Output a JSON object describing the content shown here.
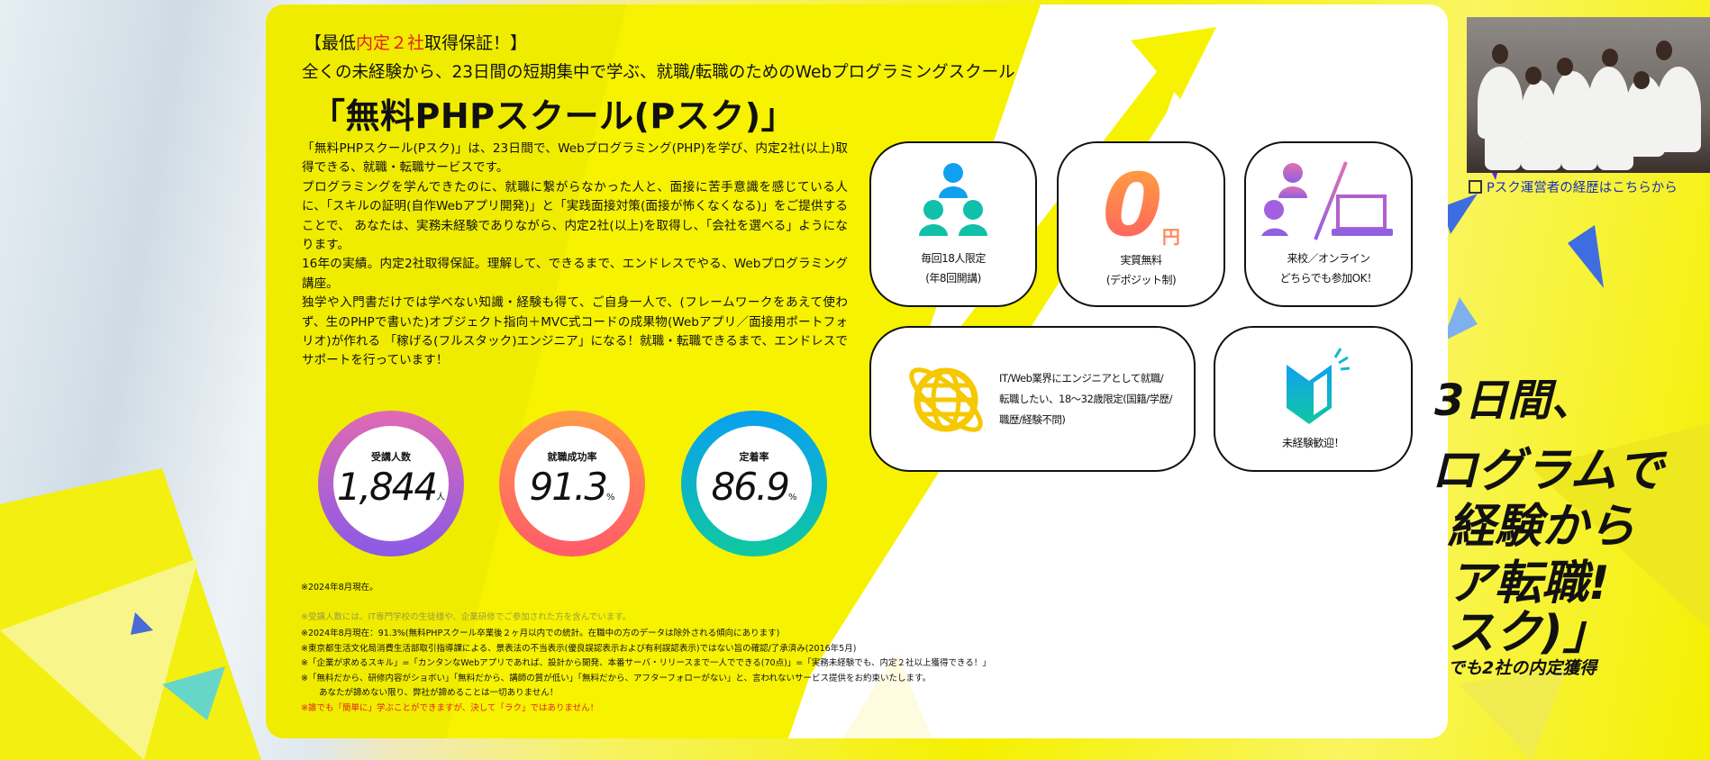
{
  "header": {
    "badge_prefix": "【最低",
    "badge_red": "内定２社",
    "badge_suffix": "取得保証！】",
    "subtitle": "全くの未経験から、23日間の短期集中で学ぶ、就職/転職のためのWebプログラミングスクール",
    "title": "「無料PHPスクール(Pスク)」"
  },
  "paragraphs": [
    "「無料PHPスクール(Pスク)」は、23日間で、Webプログラミング(PHP)を学び、内定2社(以上)取得できる、就職・転職サービスです。",
    "プログラミングを学んできたのに、就職に繋がらなかった人と、面接に苦手意識を感じている人に、「スキルの証明(自作Webアプリ開発)」と「実践面接対策(面接が怖くなくなる)」をご提供することで、 あなたは、実務未経験でありながら、内定2社(以上)を取得し、「会社を選べる」ようになります。",
    "16年の実績。内定2社取得保証。理解して、できるまで、エンドレスでやる、Webプログラミング講座。",
    "独学や入門書だけでは学べない知識・経験も得て、ご自身一人で、(フレームワークをあえて使わず、生のPHPで書いた)オブジェクト指向＋MVC式コードの成果物(Webアプリ／面接用ポートフォリオ)が作れる 「稼げる(フルスタック)エンジニア」になる！就職・転職できるまで、エンドレスでサポートを行っています！"
  ],
  "stats": [
    {
      "label": "受講人数",
      "value": "1,844",
      "unit": "人",
      "colors": [
        "#e06ab4",
        "#8a5ae6"
      ]
    },
    {
      "label": "就職成功率",
      "value": "91.3",
      "unit": "%",
      "colors": [
        "#ff9a4a",
        "#ff5a6a"
      ]
    },
    {
      "label": "定着率",
      "value": "86.9",
      "unit": "%",
      "colors": [
        "#0aa0f0",
        "#10c8a0"
      ]
    }
  ],
  "notes": {
    "n1": "※2024年8月現在。",
    "n2": "※受講人数には、IT専門学校の生徒様や、企業研修でご参加された方を含んでいます。",
    "n3": "※2024年8月現在：91.3%(無料PHPスクール卒業後２ヶ月以内での統計。在職中の方のデータは除外される傾向にあります)",
    "n4": "※東京都生活文化局消費生活部取引指導課による、景表法の不当表示(優良誤認表示および有利誤認表示)ではない旨の確認/了承済み(2016年5月)",
    "n5": "※「企業が求めるスキル」=「カンタンなWebアプリであれば、設計から開発、本番サーバ・リリースまで一人でできる(70点)」=「実務未経験でも、内定２社以上獲得できる！」",
    "n6": "※「無料だから、研修内容がショボい」「無料だから、講師の質が低い」「無料だから、アフターフォローがない」と、言われないサービス提供をお約束いたします。",
    "n7": "あなたが諦めない限り、弊社が諦めることは一切ありません！",
    "n8": "※誰でも「簡単に」学ぶことができますが、決して「ラク」ではありません！"
  },
  "features": [
    {
      "icon": "people-group-icon",
      "line1": "毎回18人限定",
      "line2": "(年8回開講)"
    },
    {
      "icon": "zero-yen-icon",
      "big": "0",
      "yen": "円",
      "line1": "実質無料",
      "line2": "(デポジット制)"
    },
    {
      "icon": "people-laptop-icon",
      "line1": "来校／オンライン",
      "line2": "どちらでも参加OK！"
    },
    {
      "icon": "globe-icon",
      "line1": "IT/Web業界にエンジニアとして就職/",
      "line2": "転職したい、18～32歳限定(国籍/学歴/",
      "line3": "職歴/経験不問)"
    },
    {
      "icon": "beginner-mark-icon",
      "line1": "未経験歓迎！"
    }
  ],
  "side": {
    "link": "Pスク運営者の経歴はこちらから",
    "hero": [
      "3日間、",
      "ログラムで",
      "経験から",
      "ア転職!",
      "スク)」"
    ],
    "hero_sub": "でも2社の内定獲得"
  },
  "colors": {
    "yellow": "#f5f000",
    "red": "#e3231b",
    "link": "#1a2fb8"
  }
}
